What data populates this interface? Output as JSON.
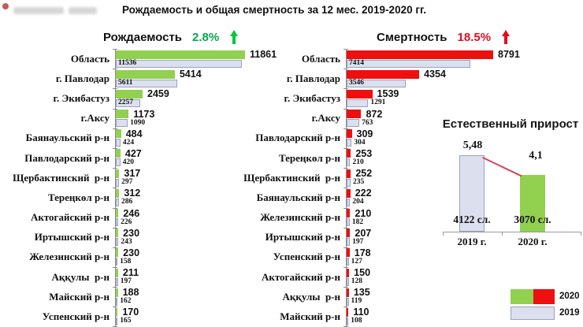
{
  "page_title": "Рождаемость и общая смертность за 12 мес. 2019-2020 гг.",
  "colors": {
    "bar_2020_green": "#92d050",
    "bar_2020_red": "#ee0f0f",
    "bar_2019_light": "#dcdfee",
    "births_change_text": "#00a84f",
    "deaths_change_text": "#e60b1e"
  },
  "chart_data": [
    {
      "type": "bar",
      "orientation": "horizontal",
      "title": "Рождаемость",
      "change": "2.8%",
      "change_direction": "up",
      "categories": [
        "Область",
        "г. Павлодар",
        "г. Экибастуз",
        "г.Аксу",
        "Баянаульский р-н",
        "Павлодарский р-н",
        "Щербактинский  р-н",
        "Тереңкөл р-н",
        "Актогайский р-н",
        "Иртышский р-н",
        "Железинский р-н",
        "Аққулы  р-н",
        "Майский р-н",
        "Успенский р-н"
      ],
      "series": [
        {
          "name": "2020",
          "color": "#92d050",
          "values": [
            11861,
            5414,
            2459,
            1173,
            484,
            427,
            317,
            312,
            246,
            230,
            230,
            211,
            188,
            170
          ]
        },
        {
          "name": "2019",
          "color": "#dcdfee",
          "values": [
            11536,
            5611,
            2257,
            1090,
            424,
            420,
            297,
            286,
            226,
            243,
            158,
            197,
            162,
            165
          ]
        }
      ]
    },
    {
      "type": "bar",
      "orientation": "horizontal",
      "title": "Смертность",
      "change": "18.5%",
      "change_direction": "up",
      "categories": [
        "Область",
        "г. Павлодар",
        "г. Экибастуз",
        "г.Аксу",
        "Павлодарский р-н",
        "Тереңкөл р-н",
        "Щербактинский  р-н",
        "Баянаульский р-н",
        "Железинский р-н",
        "Иртышский р-н",
        "Успенский р-н",
        "Актогайский р-н",
        "Аққулы  р-н",
        "Майский р-н"
      ],
      "series": [
        {
          "name": "2020",
          "color": "#ee0f0f",
          "values": [
            8791,
            4354,
            1539,
            872,
            309,
            253,
            252,
            222,
            210,
            207,
            178,
            150,
            135,
            110
          ]
        },
        {
          "name": "2019",
          "color": "#dcdfee",
          "values": [
            7414,
            3546,
            1291,
            763,
            304,
            210,
            235,
            204,
            182,
            197,
            127,
            128,
            119,
            108
          ]
        }
      ]
    },
    {
      "type": "bar",
      "orientation": "vertical",
      "title": "Естественный прирост",
      "categories": [
        "2019 г.",
        "2020 г."
      ],
      "values": [
        5.48,
        4.1
      ],
      "value_labels": [
        "5,48",
        "4,1"
      ],
      "case_labels": [
        "4122 сл.",
        "3070 сл."
      ],
      "colors": [
        "#dcdfee",
        "#92d050"
      ]
    }
  ],
  "legend": {
    "items": [
      {
        "year": "2020",
        "swatch_colors": [
          "#92d050",
          "#ee0f0f"
        ]
      },
      {
        "year": "2019",
        "swatch_colors": [
          "#dcdfee"
        ]
      }
    ]
  }
}
